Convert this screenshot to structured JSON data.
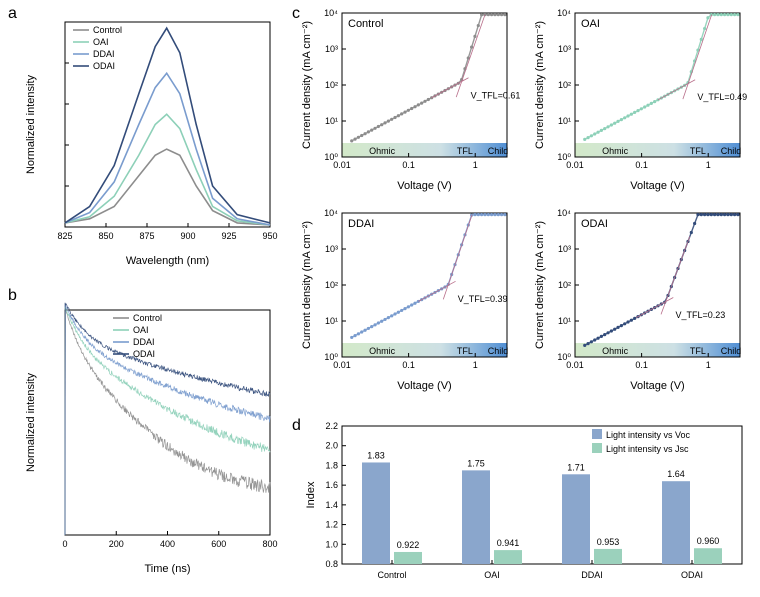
{
  "colors": {
    "control": "#8d8d8d",
    "oai": "#8dd0b8",
    "ddai": "#7a9cce",
    "odai": "#334c7a",
    "voc": "#8aa6cc",
    "jsc": "#9bd1bc",
    "bg_green": "#d3e9c9",
    "bg_blue": "#4f8ed4",
    "pink_line": "#b86e8a"
  },
  "a": {
    "label": "a",
    "xlabel": "Wavelength (nm)",
    "ylabel": "Normalized intensity",
    "xlim": [
      825,
      950
    ],
    "xticks": [
      825,
      850,
      875,
      900,
      925,
      950
    ],
    "legend": [
      "Control",
      "OAI",
      "DDAI",
      "ODAI"
    ],
    "series": {
      "control": [
        [
          825,
          0.02
        ],
        [
          840,
          0.04
        ],
        [
          855,
          0.1
        ],
        [
          870,
          0.25
        ],
        [
          880,
          0.35
        ],
        [
          887,
          0.38
        ],
        [
          895,
          0.35
        ],
        [
          905,
          0.2
        ],
        [
          915,
          0.08
        ],
        [
          930,
          0.02
        ],
        [
          950,
          0.01
        ]
      ],
      "oai": [
        [
          825,
          0.02
        ],
        [
          840,
          0.05
        ],
        [
          855,
          0.15
        ],
        [
          870,
          0.35
        ],
        [
          880,
          0.5
        ],
        [
          887,
          0.55
        ],
        [
          895,
          0.48
        ],
        [
          905,
          0.28
        ],
        [
          915,
          0.1
        ],
        [
          930,
          0.03
        ],
        [
          950,
          0.01
        ]
      ],
      "ddai": [
        [
          825,
          0.02
        ],
        [
          840,
          0.07
        ],
        [
          855,
          0.22
        ],
        [
          870,
          0.5
        ],
        [
          880,
          0.68
        ],
        [
          887,
          0.75
        ],
        [
          895,
          0.65
        ],
        [
          905,
          0.38
        ],
        [
          915,
          0.14
        ],
        [
          930,
          0.04
        ],
        [
          950,
          0.01
        ]
      ],
      "odai": [
        [
          825,
          0.02
        ],
        [
          840,
          0.1
        ],
        [
          855,
          0.3
        ],
        [
          870,
          0.65
        ],
        [
          880,
          0.88
        ],
        [
          887,
          0.97
        ],
        [
          895,
          0.85
        ],
        [
          905,
          0.5
        ],
        [
          915,
          0.2
        ],
        [
          930,
          0.06
        ],
        [
          950,
          0.02
        ]
      ]
    }
  },
  "b": {
    "label": "b",
    "xlabel": "Time (ns)",
    "ylabel": "Normalized intensity",
    "xlim": [
      0,
      800
    ],
    "xticks": [
      0,
      200,
      400,
      600,
      800
    ],
    "legend": [
      "Control",
      "OAI",
      "DDAI",
      "ODAI"
    ],
    "decay": {
      "control": {
        "tau1": 40,
        "a1": 0.5,
        "tau2": 180,
        "floor": 0.04,
        "noise": 0.025
      },
      "oai": {
        "tau1": 50,
        "a1": 0.5,
        "tau2": 280,
        "floor": 0.06,
        "noise": 0.025
      },
      "ddai": {
        "tau1": 55,
        "a1": 0.5,
        "tau2": 380,
        "floor": 0.09,
        "noise": 0.025
      },
      "odai": {
        "tau1": 60,
        "a1": 0.5,
        "tau2": 500,
        "floor": 0.13,
        "noise": 0.025
      }
    }
  },
  "c": {
    "label": "c",
    "xlabel": "Voltage (V)",
    "ylabel": "Current density (mA cm⁻²)",
    "xlim": [
      0.01,
      3
    ],
    "ylim": [
      1,
      10000
    ],
    "xticks": [
      0.01,
      0.1,
      1
    ],
    "yticks": [
      1,
      10,
      100,
      1000,
      10000
    ],
    "yticklabels": [
      "10⁰",
      "10¹",
      "10²",
      "10³",
      "10⁴"
    ],
    "regions": [
      "Ohmic",
      "TFL",
      "Child"
    ],
    "panels": [
      {
        "title": "Control",
        "color": "control",
        "vtfl": "V_TFL=0.61",
        "i0": 2.0,
        "v_tfl": 0.61,
        "slope_tfl": 6.0
      },
      {
        "title": "OAI",
        "color": "oai",
        "vtfl": "V_TFL=0.49",
        "i0": 2.2,
        "v_tfl": 0.49,
        "slope_tfl": 6.0
      },
      {
        "title": "DDAI",
        "color": "ddai",
        "vtfl": "V_TFL=0.39",
        "i0": 2.5,
        "v_tfl": 0.39,
        "slope_tfl": 5.5
      },
      {
        "title": "ODAI",
        "color": "odai",
        "vtfl": "V_TFL=0.23",
        "i0": 1.5,
        "v_tfl": 0.23,
        "slope_tfl": 5.0
      }
    ]
  },
  "d": {
    "label": "d",
    "ylabel": "Index",
    "ylim": [
      0.8,
      2.2
    ],
    "yticks": [
      0.8,
      1.0,
      1.2,
      1.4,
      1.6,
      1.8,
      2.0,
      2.2
    ],
    "categories": [
      "Control",
      "OAI",
      "DDAI",
      "ODAI"
    ],
    "legend": [
      "Light intensity vs Voc",
      "Light intensity vs Jsc"
    ],
    "voc": [
      1.83,
      1.75,
      1.71,
      1.64
    ],
    "jsc": [
      0.922,
      0.941,
      0.953,
      0.96
    ]
  }
}
